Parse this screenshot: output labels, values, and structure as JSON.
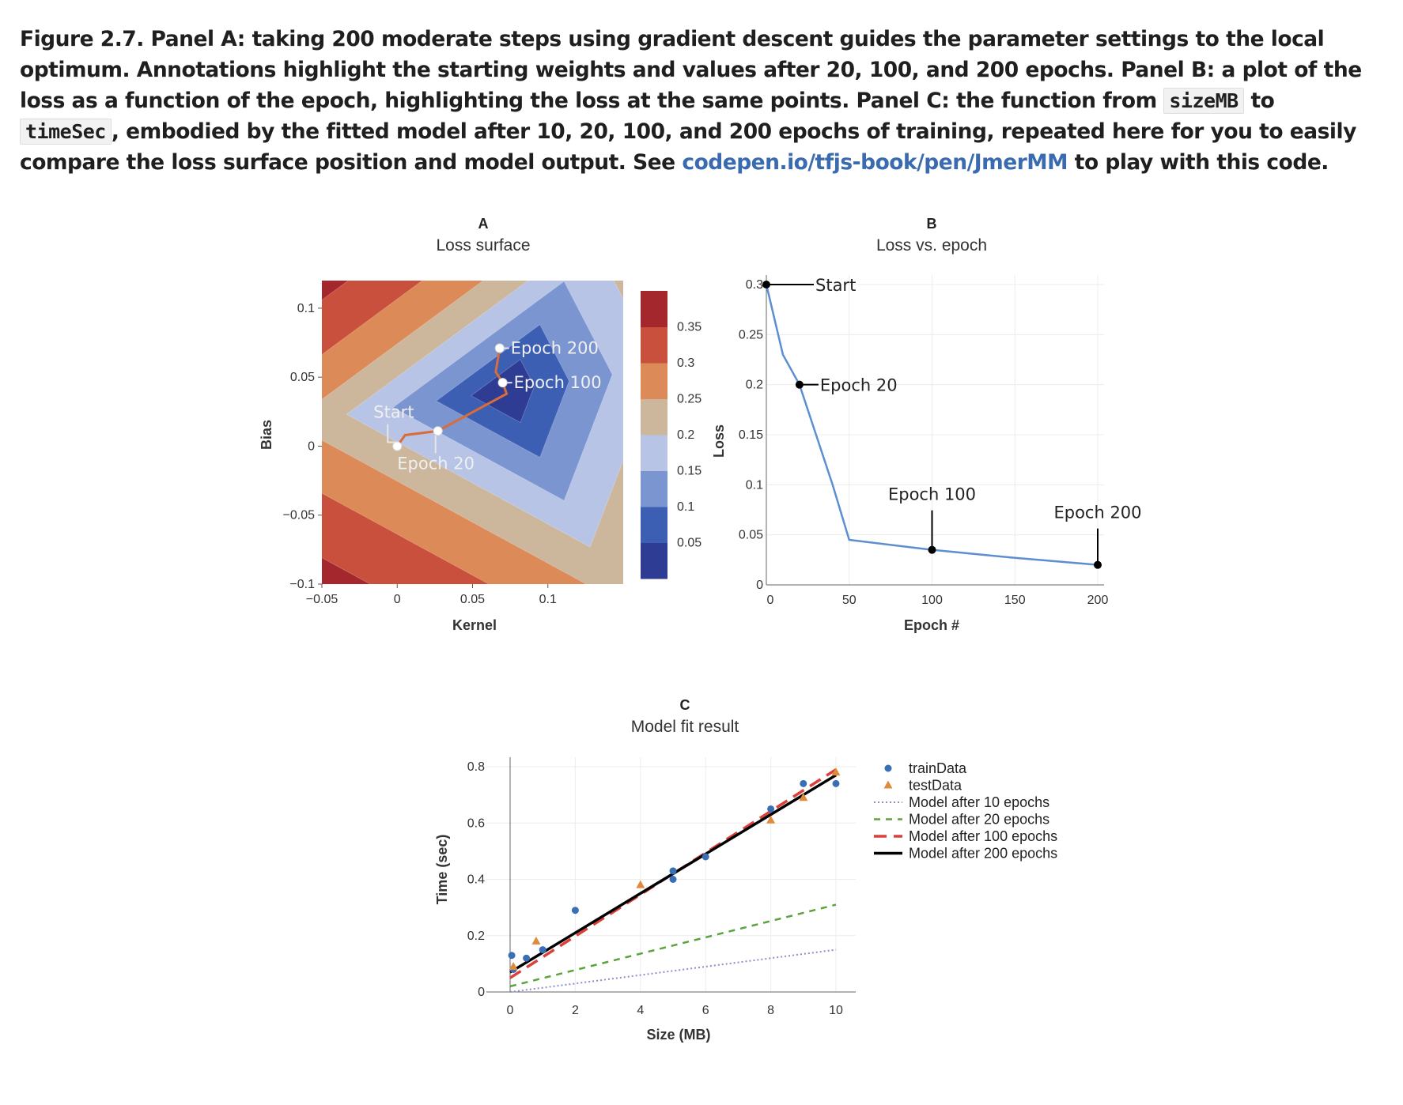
{
  "caption": {
    "part1": "Figure 2.7. Panel A: taking 200 moderate steps using gradient descent guides the parameter settings to the local optimum. Annotations highlight the starting weights and values after 20, 100, and 200 epochs. Panel B: a plot of the loss as a function of the epoch, highlighting the loss at the same points. Panel C: the function from ",
    "code1": "sizeMB",
    "part2": " to ",
    "code2": "timeSec",
    "part3": ", embodied by the fitted model after 10, 20, 100, and 200 epochs of training, repeated here for you to easily compare the loss surface position and model output. See ",
    "link": "codepen.io/tfjs-book/pen/JmerMM",
    "part4": " to play with this code."
  },
  "colors": {
    "contour_levels": [
      "#2e3d93",
      "#3d5fb3",
      "#7b95d1",
      "#b7c4e6",
      "#ccb79d",
      "#dd8a59",
      "#c9503c",
      "#a3272c"
    ],
    "train": "#3a6fb5",
    "test": "#e08a3c",
    "path": "#d96c3a",
    "loss_line": "#5d8ed1",
    "m10": "#8a8fc9",
    "m20": "#5aa33f",
    "m100": "#d9413a",
    "m200": "#000000"
  },
  "chart_data": [
    {
      "type": "heatmap",
      "letter": "A",
      "title": "Loss surface",
      "xlabel": "Kernel",
      "ylabel": "Bias",
      "xlim": [
        -0.05,
        0.15
      ],
      "ylim": [
        -0.1,
        0.12
      ],
      "xticks": [
        "−0.05",
        "0",
        "0.05",
        "0.1"
      ],
      "yticks": [
        "0.1",
        "0.05",
        "0",
        "−0.05",
        "−0.1"
      ],
      "colorbar_ticks": [
        "0.35",
        "0.3",
        "0.25",
        "0.2",
        "0.15",
        "0.1",
        "0.05"
      ],
      "path": [
        {
          "label": "Start",
          "kernel": 0.0,
          "bias": 0.0
        },
        {
          "label": "Epoch 20",
          "kernel": 0.027,
          "bias": 0.011
        },
        {
          "label": "Epoch 100",
          "kernel": 0.07,
          "bias": 0.046
        },
        {
          "label": "Epoch 200",
          "kernel": 0.068,
          "bias": 0.071
        }
      ]
    },
    {
      "type": "line",
      "letter": "B",
      "title": "Loss vs. epoch",
      "xlabel": "Epoch #",
      "ylabel": "Loss",
      "xlim": [
        0,
        200
      ],
      "ylim": [
        0,
        0.3
      ],
      "xticks": [
        "0",
        "50",
        "100",
        "150",
        "200"
      ],
      "yticks": [
        "0.3",
        "0.25",
        "0.2",
        "0.15",
        "0.1",
        "0.05",
        "0"
      ],
      "x": [
        0,
        10,
        20,
        30,
        40,
        50,
        100,
        150,
        200
      ],
      "y": [
        0.3,
        0.23,
        0.2,
        0.15,
        0.1,
        0.045,
        0.035,
        0.027,
        0.02
      ],
      "markers": [
        {
          "label": "Start",
          "x": 0,
          "y": 0.3
        },
        {
          "label": "Epoch 20",
          "x": 20,
          "y": 0.2
        },
        {
          "label": "Epoch 100",
          "x": 100,
          "y": 0.035
        },
        {
          "label": "Epoch 200",
          "x": 200,
          "y": 0.02
        }
      ]
    },
    {
      "type": "scatter",
      "letter": "C",
      "title": "Model fit result",
      "xlabel": "Size (MB)",
      "ylabel": "Time (sec)",
      "xlim": [
        0,
        10
      ],
      "ylim": [
        0,
        0.8
      ],
      "xticks": [
        "0",
        "2",
        "4",
        "6",
        "8",
        "10"
      ],
      "yticks": [
        "0.8",
        "0.6",
        "0.4",
        "0.2",
        "0"
      ],
      "series": [
        {
          "name": "trainData",
          "x": [
            0.05,
            0.1,
            0.5,
            1.0,
            2.0,
            5.0,
            5.0,
            6.0,
            8.0,
            9.0,
            10.0
          ],
          "y": [
            0.13,
            0.08,
            0.12,
            0.15,
            0.29,
            0.43,
            0.4,
            0.48,
            0.65,
            0.74,
            0.74
          ]
        },
        {
          "name": "testData",
          "x": [
            0.1,
            0.8,
            4.0,
            8.0,
            9.0,
            10.0
          ],
          "y": [
            0.09,
            0.18,
            0.38,
            0.61,
            0.69,
            0.78
          ]
        },
        {
          "name": "Model after 10 epochs",
          "x": [
            0,
            10
          ],
          "y": [
            0.0,
            0.15
          ]
        },
        {
          "name": "Model after 20 epochs",
          "x": [
            0,
            10
          ],
          "y": [
            0.02,
            0.31
          ]
        },
        {
          "name": "Model after 100 epochs",
          "x": [
            0,
            10
          ],
          "y": [
            0.05,
            0.79
          ]
        },
        {
          "name": "Model after 200 epochs",
          "x": [
            0,
            10
          ],
          "y": [
            0.07,
            0.77
          ]
        }
      ]
    }
  ]
}
